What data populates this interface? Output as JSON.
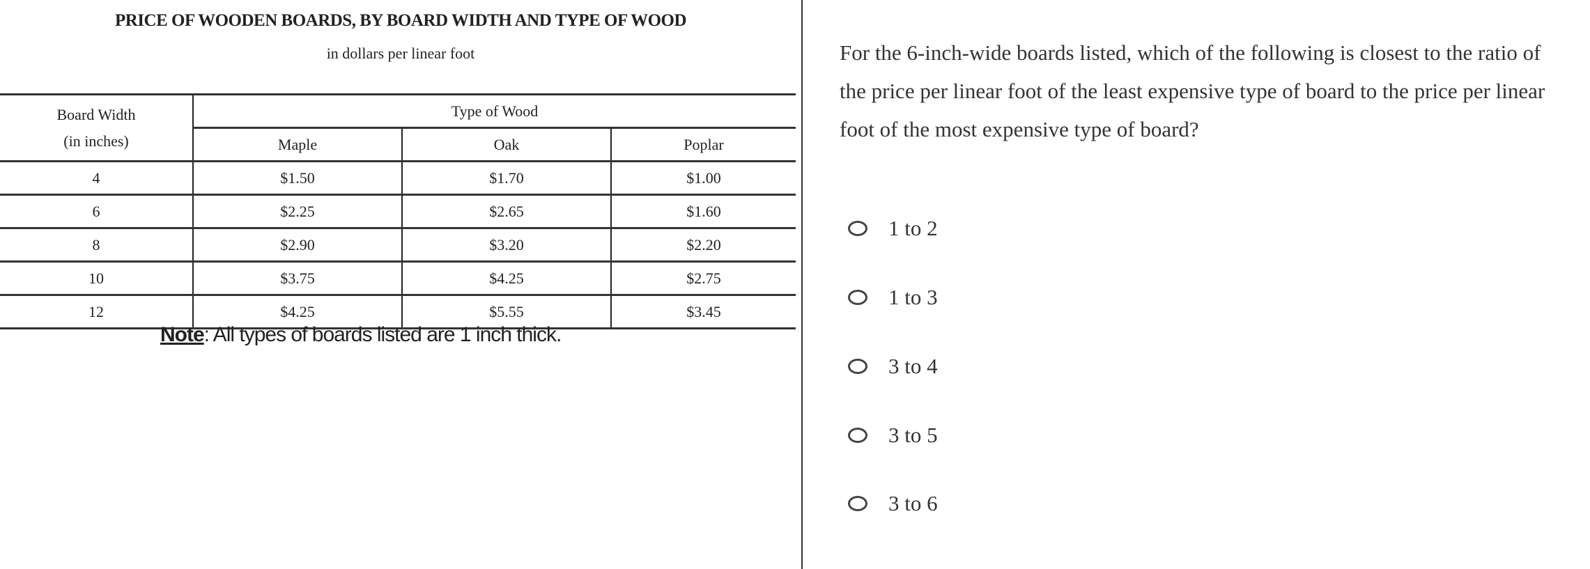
{
  "table": {
    "title": "PRICE OF WOODEN BOARDS, BY BOARD WIDTH AND TYPE OF WOOD",
    "subtitle": "in dollars per linear foot",
    "header_width_line1": "Board Width",
    "header_width_line2": "(in inches)",
    "header_type": "Type of Wood",
    "columns": [
      "Maple",
      "Oak",
      "Poplar"
    ],
    "rows": [
      {
        "width": "4",
        "values": [
          "$1.50",
          "$1.70",
          "$1.00"
        ]
      },
      {
        "width": "6",
        "values": [
          "$2.25",
          "$2.65",
          "$1.60"
        ]
      },
      {
        "width": "8",
        "values": [
          "$2.90",
          "$3.20",
          "$2.20"
        ]
      },
      {
        "width": "10",
        "values": [
          "$3.75",
          "$4.25",
          "$2.75"
        ]
      },
      {
        "width": "12",
        "values": [
          "$4.25",
          "$5.55",
          "$3.45"
        ]
      }
    ],
    "note_label": "Note",
    "note_text": ": All types of boards listed are 1 inch thick."
  },
  "question": {
    "text": "For the 6-inch-wide boards listed, which of the following is closest to the ratio of the price per linear foot of the least expensive type of board to the price per linear foot of the most expensive type of board?",
    "options": [
      "1 to 2",
      "1 to 3",
      "3 to 4",
      "3 to 5",
      "3 to 6"
    ]
  }
}
